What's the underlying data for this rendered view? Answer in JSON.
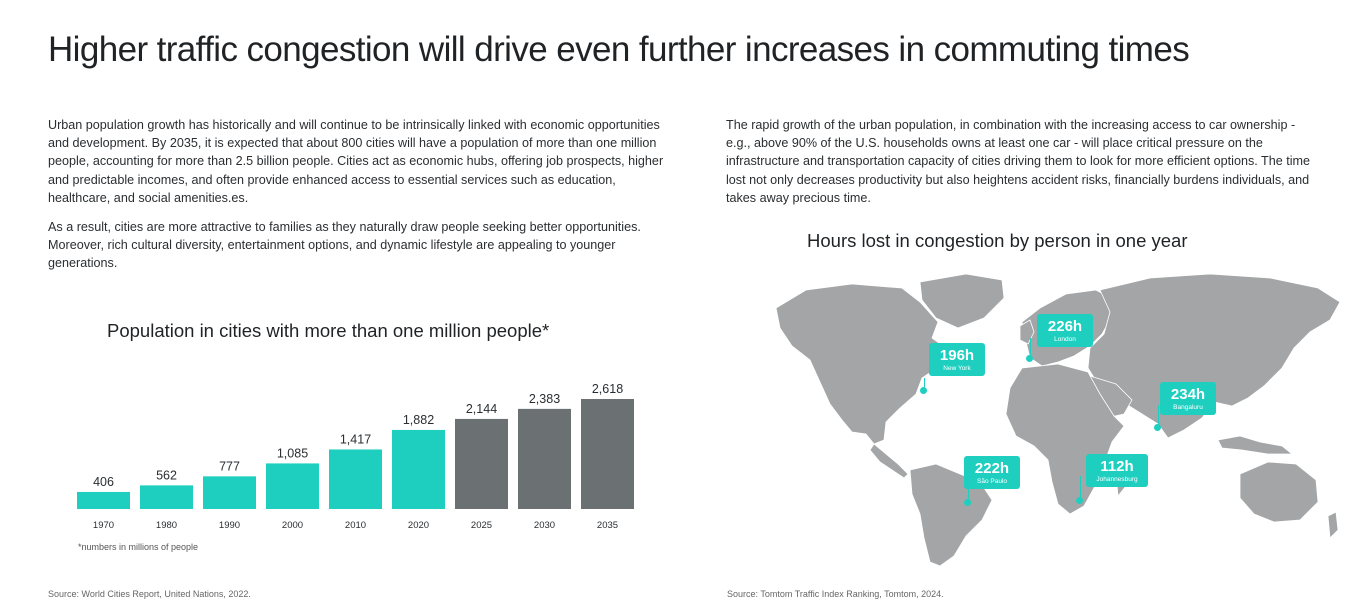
{
  "page": {
    "title": "Higher traffic congestion will drive even further increases in commuting times"
  },
  "left": {
    "paragraph1": "Urban population growth has historically and will continue to be intrinsically linked with economic opportunities and development. By 2035, it is expected that about 800 cities will have a population of more than one million people, accounting for more than 2.5 billion people. Cities act as economic hubs, offering job prospects, higher and predictable incomes, and often provide enhanced access to essential services such as education, healthcare, and social amenities.es.",
    "paragraph2": "As a result, cities are more attractive to families as they naturally draw people seeking better opportunities. Moreover, rich cultural diversity, entertainment options, and dynamic lifestyle are appealing to younger generations.",
    "footnote": "*numbers in millions of people",
    "source": "Source: World Cities Report, United Nations, 2022."
  },
  "right": {
    "paragraph1": "The rapid growth of the urban population, in combination with the increasing access to car ownership - e.g., above 90% of the U.S. households owns at least one car - will place critical pressure on the infrastructure and transportation capacity of cities driving them to look for more efficient options. The time lost not only decreases productivity but also heightens accident risks, financially burdens individuals, and takes away precious time.",
    "source": "Source: Tomtom Traffic Index Ranking, Tomtom, 2024."
  },
  "colors": {
    "teal": "#1ecfc0",
    "gray": "#6b7173",
    "map_land": "#a3a5a6"
  },
  "chart_data": [
    {
      "type": "bar",
      "title": "Population in cities with more than one million people*",
      "categories": [
        "1970",
        "1980",
        "1990",
        "2000",
        "2010",
        "2020",
        "2025",
        "2030",
        "2035"
      ],
      "values": [
        406,
        562,
        777,
        1085,
        1417,
        1882,
        2144,
        2383,
        2618
      ],
      "value_labels": [
        "406",
        "562",
        "777",
        "1,085",
        "1,417",
        "1,882",
        "2,144",
        "2,383",
        "2,618"
      ],
      "colors": [
        "#1ecfc0",
        "#1ecfc0",
        "#1ecfc0",
        "#1ecfc0",
        "#1ecfc0",
        "#1ecfc0",
        "#6b7173",
        "#6b7173",
        "#6b7173"
      ],
      "xlabel": "",
      "ylabel": "",
      "grid": false
    },
    {
      "type": "map",
      "title": "Hours lost in congestion by person in one year",
      "points": [
        {
          "city": "New York",
          "value": "196h"
        },
        {
          "city": "London",
          "value": "226h"
        },
        {
          "city": "Bangaluru",
          "value": "234h"
        },
        {
          "city": "São Paulo",
          "value": "222h"
        },
        {
          "city": "Johannesburg",
          "value": "112h"
        }
      ]
    }
  ]
}
